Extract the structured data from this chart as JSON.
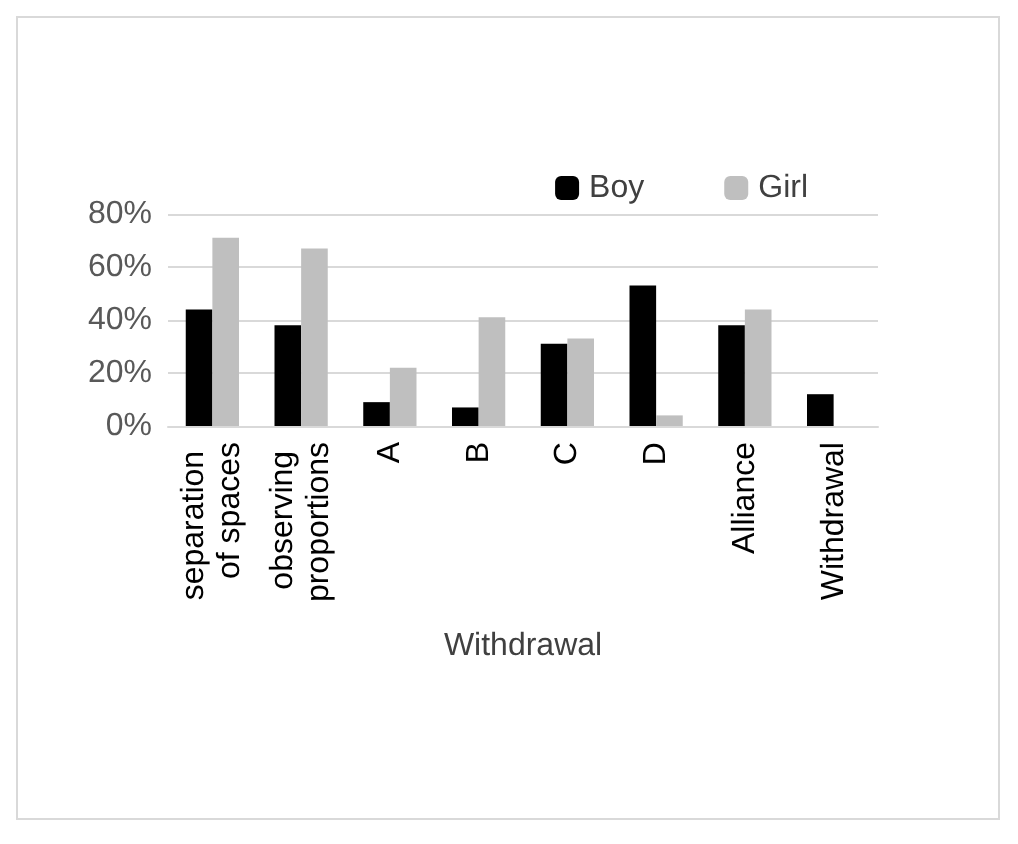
{
  "chart_data": {
    "type": "bar",
    "xlabel": "Withdrawal",
    "categories": [
      "separation of spaces",
      "observing proportions",
      "A",
      "B",
      "C",
      "D",
      "Alliance",
      "Withdrawal"
    ],
    "series": [
      {
        "name": "Boy",
        "color": "#000000",
        "values": [
          44,
          38,
          9,
          7,
          31,
          53,
          38,
          12
        ]
      },
      {
        "name": "Girl",
        "color": "#bfbfbf",
        "values": [
          71,
          67,
          22,
          41,
          33,
          4,
          44,
          null
        ]
      }
    ],
    "ylim": [
      0,
      80
    ],
    "yticks": [
      {
        "value": 0,
        "label": "0%"
      },
      {
        "value": 20,
        "label": "20%"
      },
      {
        "value": 40,
        "label": "40%"
      },
      {
        "value": 60,
        "label": "60%"
      },
      {
        "value": 80,
        "label": "80%"
      }
    ],
    "grid": "y",
    "legend": "top right"
  }
}
